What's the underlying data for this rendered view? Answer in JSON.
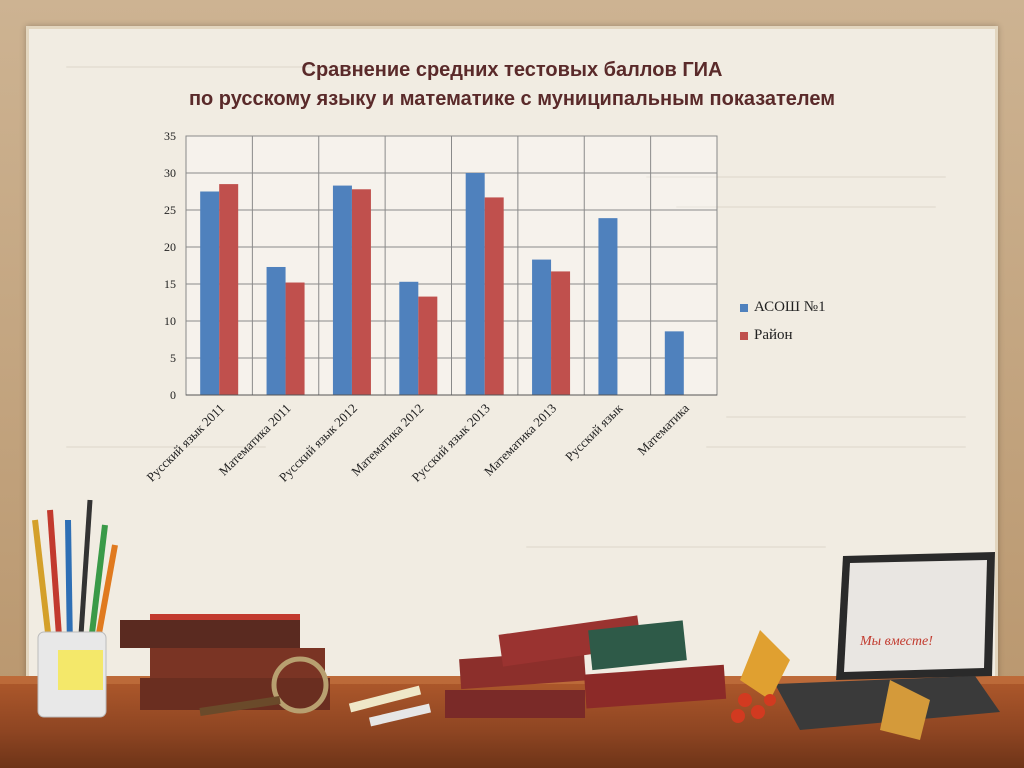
{
  "title": {
    "line1": "Сравнение средних тестовых баллов ГИА",
    "line2": "по русскому языку и математике с муниципальным показателем"
  },
  "colors": {
    "series1": "#4f81bd",
    "series2": "#c0504d",
    "title": "#5a2a2a"
  },
  "chart_data": {
    "type": "bar",
    "title": "Сравнение средних тестовых баллов ГИА по русскому языку и математике с муниципальным показателем",
    "categories": [
      "Русский язык 2011",
      "Математика 2011",
      "Русский язык 2012",
      "Математика 2012",
      "Русский язык 2013",
      "Математика 2013",
      "Русский язык",
      "Математика"
    ],
    "series": [
      {
        "name": "АСОШ №1",
        "values": [
          27.5,
          17.3,
          28.3,
          15.3,
          30,
          18.3,
          23.9,
          8.6
        ]
      },
      {
        "name": "Район",
        "values": [
          28.5,
          15.2,
          27.8,
          13.3,
          26.7,
          16.7,
          null,
          null
        ]
      }
    ],
    "ylim": [
      0,
      35
    ],
    "yticks": [
      0,
      5,
      10,
      15,
      20,
      25,
      30,
      35
    ],
    "grid": true,
    "legend": "right"
  },
  "illustration": {
    "pencil_cup": "pencil-cup-icon",
    "books": "book-stack-icon",
    "laptop": "laptop-icon",
    "laptop_screen_text": "Мы вместе!",
    "leaves": "maple-leaf-icon"
  }
}
